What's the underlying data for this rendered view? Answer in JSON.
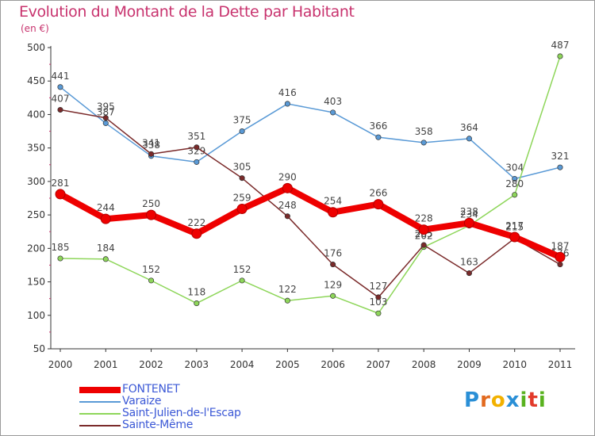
{
  "title": "Evolution du Montant de la Dette par Habitant",
  "unit": "(en €)",
  "brand": {
    "text": "Proxiti",
    "letter_colors": [
      "#2a8fd6",
      "#e26a1f",
      "#f2b100",
      "#2a8fd6",
      "#59b21f",
      "#e23a2a",
      "#59b21f"
    ]
  },
  "chart_data": {
    "type": "line",
    "title": "Evolution du Montant de la Dette par Habitant",
    "ylabel": "(en €)",
    "xlabel": "",
    "x": [
      "2000",
      "2001",
      "2002",
      "2003",
      "2004",
      "2005",
      "2006",
      "2007",
      "2008",
      "2009",
      "2010",
      "2011"
    ],
    "ylim": [
      50,
      500
    ],
    "yticks": [
      "50",
      "100",
      "150",
      "200",
      "250",
      "300",
      "350",
      "400",
      "450",
      "500"
    ],
    "grid": false,
    "legend_position": "bottom-left",
    "series": [
      {
        "name": "FONTENET",
        "color": "#ee0000",
        "emphasis": true,
        "values": [
          281,
          244,
          250,
          222,
          259,
          290,
          254,
          266,
          228,
          238,
          217,
          187
        ],
        "labels": [
          "281",
          "244",
          "250",
          "222",
          "259",
          "290",
          "254",
          "266",
          "228",
          "238",
          "217",
          "187"
        ]
      },
      {
        "name": "Varaize",
        "color": "#5a9ad6",
        "emphasis": false,
        "values": [
          441,
          387,
          338,
          329,
          375,
          416,
          403,
          366,
          358,
          364,
          304,
          321
        ],
        "labels": [
          "441",
          "387",
          "338",
          "329",
          "375",
          "416",
          "403",
          "366",
          "358",
          "364",
          "304",
          "321"
        ]
      },
      {
        "name": "Saint-Julien-de-l'Escap",
        "color": "#8ed65a",
        "emphasis": false,
        "values": [
          185,
          184,
          152,
          118,
          152,
          122,
          129,
          103,
          202,
          234,
          280,
          487
        ],
        "labels": [
          "185",
          "184",
          "152",
          "118",
          "152",
          "122",
          "129",
          "103",
          "202",
          "234",
          "280",
          "487"
        ]
      },
      {
        "name": "Sainte-Même",
        "color": "#7a2a2a",
        "emphasis": false,
        "values": [
          407,
          395,
          341,
          351,
          305,
          248,
          176,
          127,
          205,
          163,
          215,
          176
        ],
        "labels": [
          "407",
          "395",
          "341",
          "351",
          "305",
          "248",
          "176",
          "127",
          "205",
          "163",
          "215",
          "176"
        ]
      }
    ]
  }
}
